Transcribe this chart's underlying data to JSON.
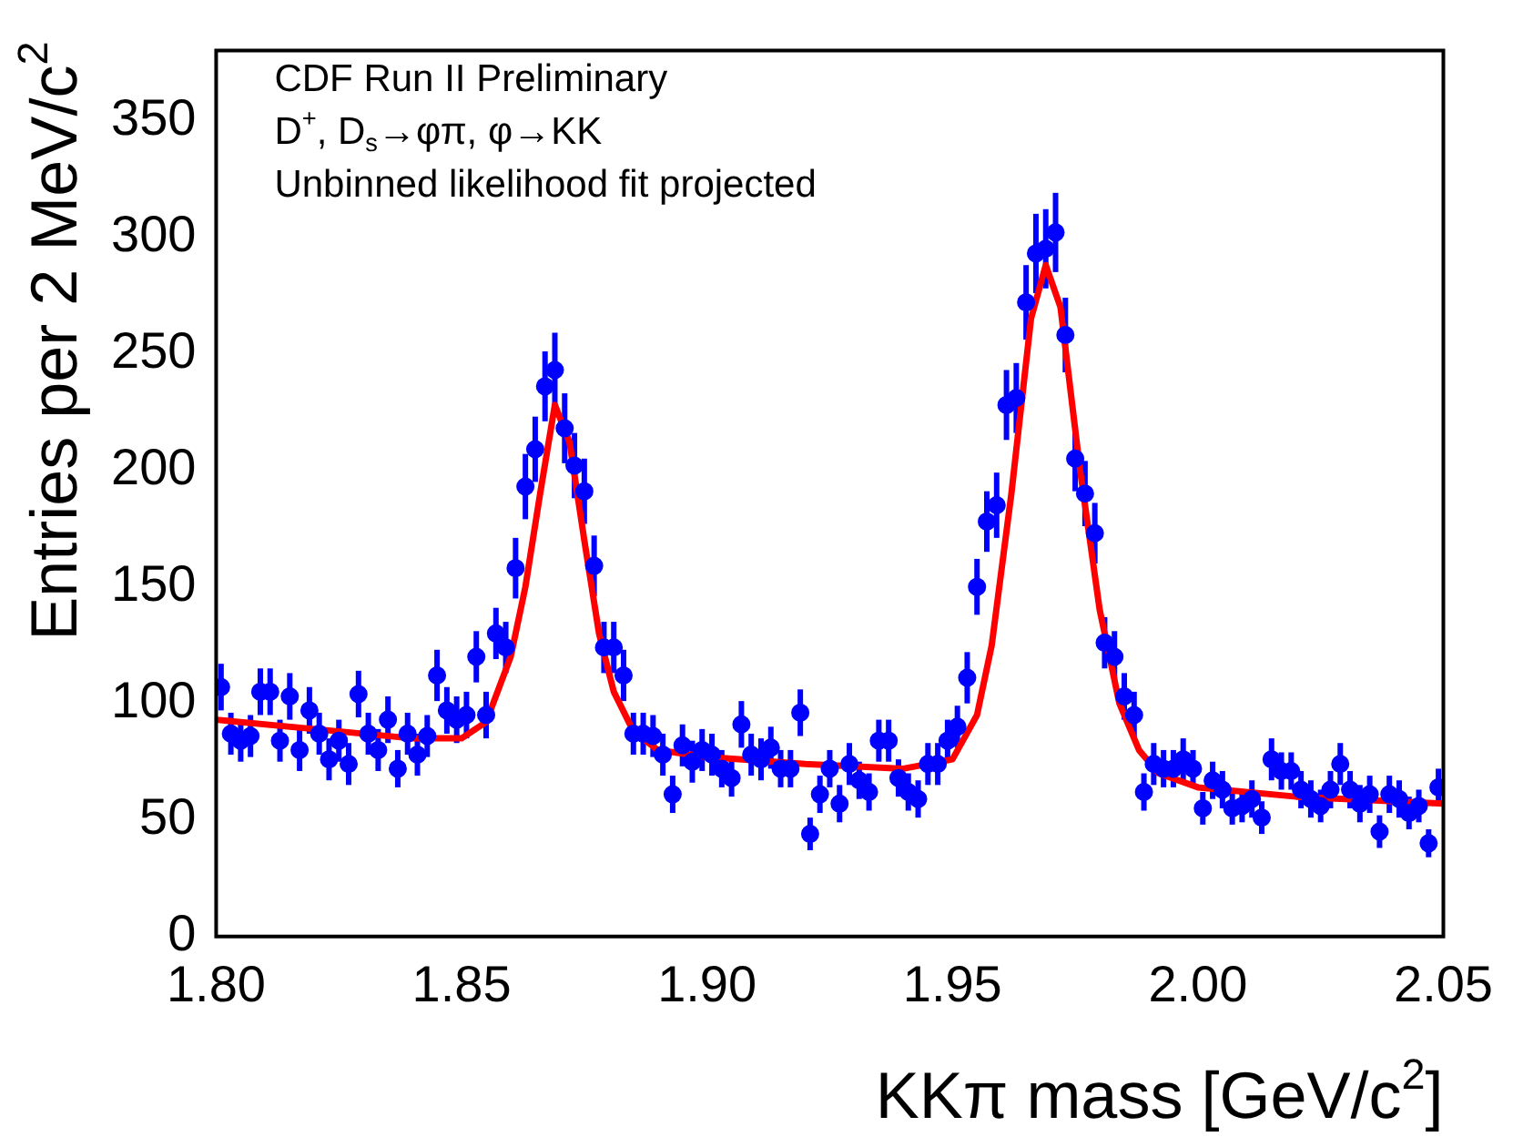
{
  "chart_data": {
    "type": "scatter",
    "xlabel": "KKπ mass [GeV/c$^{2}$]",
    "ylabel": "Entries per 2 MeV/c$^{2}$",
    "annotations": [
      "CDF Run II Preliminary",
      "D$^{+}$, D$_{s}$→φπ, φ→KK",
      "Unbinned likelihood fit projected"
    ],
    "xlim": [
      1.8,
      2.05
    ],
    "ylim": [
      0,
      380
    ],
    "xticks": [
      {
        "value": 1.8,
        "label": "1.80"
      },
      {
        "value": 1.85,
        "label": "1.85"
      },
      {
        "value": 1.9,
        "label": "1.90"
      },
      {
        "value": 1.95,
        "label": "1.95"
      },
      {
        "value": 2.0,
        "label": "2.00"
      },
      {
        "value": 2.05,
        "label": "2.05"
      }
    ],
    "yticks": [
      0,
      50,
      100,
      150,
      200,
      250,
      300,
      350
    ],
    "grid": false,
    "legend": false,
    "series": [
      {
        "type": "scatter",
        "color": "#0000ff",
        "marker": "circle",
        "x": [
          1.801,
          1.803,
          1.805,
          1.807,
          1.809,
          1.811,
          1.813,
          1.815,
          1.817,
          1.819,
          1.821,
          1.823,
          1.825,
          1.827,
          1.829,
          1.831,
          1.833,
          1.835,
          1.837,
          1.839,
          1.841,
          1.843,
          1.845,
          1.847,
          1.849,
          1.851,
          1.853,
          1.855,
          1.857,
          1.859,
          1.861,
          1.863,
          1.865,
          1.867,
          1.869,
          1.871,
          1.873,
          1.875,
          1.877,
          1.879,
          1.881,
          1.883,
          1.885,
          1.887,
          1.889,
          1.891,
          1.893,
          1.895,
          1.897,
          1.899,
          1.901,
          1.903,
          1.905,
          1.907,
          1.909,
          1.911,
          1.913,
          1.915,
          1.917,
          1.919,
          1.921,
          1.923,
          1.925,
          1.927,
          1.929,
          1.931,
          1.933,
          1.935,
          1.937,
          1.939,
          1.941,
          1.943,
          1.945,
          1.947,
          1.949,
          1.951,
          1.953,
          1.955,
          1.957,
          1.959,
          1.961,
          1.963,
          1.965,
          1.967,
          1.969,
          1.971,
          1.973,
          1.975,
          1.977,
          1.979,
          1.981,
          1.983,
          1.985,
          1.987,
          1.989,
          1.991,
          1.993,
          1.995,
          1.997,
          1.999,
          2.001,
          2.003,
          2.005,
          2.007,
          2.009,
          2.011,
          2.013,
          2.015,
          2.017,
          2.019,
          2.021,
          2.023,
          2.025,
          2.027,
          2.029,
          2.031,
          2.033,
          2.035,
          2.037,
          2.039,
          2.041,
          2.043,
          2.045,
          2.047,
          2.049
        ],
        "values": [
          107,
          87,
          84,
          86,
          105,
          105,
          84,
          103,
          80,
          97,
          87,
          76,
          84,
          74,
          104,
          87,
          80,
          93,
          72,
          87,
          78,
          86,
          112,
          97,
          93,
          95,
          120,
          95,
          130,
          124,
          158,
          193,
          209,
          236,
          243,
          218,
          202,
          191,
          159,
          124,
          124,
          112,
          87,
          87,
          86,
          78,
          61,
          82,
          75,
          80,
          78,
          72,
          68,
          91,
          78,
          76,
          81,
          72,
          72,
          96,
          44,
          61,
          72,
          57,
          74,
          67,
          62,
          84,
          84,
          68,
          62,
          59,
          74,
          74,
          84,
          90,
          111,
          150,
          178,
          185,
          228,
          231,
          272,
          293,
          295,
          302,
          258,
          205,
          190,
          173,
          126,
          120,
          103,
          95,
          62,
          74,
          72,
          72,
          76,
          72,
          55,
          67,
          63,
          55,
          56,
          59,
          51,
          76,
          71,
          71,
          63,
          59,
          56,
          63,
          74,
          63,
          57,
          61,
          45,
          61,
          59,
          53,
          56,
          40,
          64
        ],
        "errors": [
          10,
          9,
          9,
          9,
          10,
          10,
          9,
          10,
          9,
          10,
          9,
          9,
          9,
          9,
          10,
          9,
          9,
          10,
          8,
          9,
          9,
          9,
          11,
          10,
          10,
          10,
          11,
          10,
          11,
          11,
          13,
          14,
          14,
          15,
          16,
          15,
          14,
          14,
          13,
          11,
          11,
          11,
          9,
          9,
          9,
          9,
          8,
          9,
          9,
          9,
          9,
          8,
          8,
          10,
          9,
          9,
          9,
          8,
          8,
          10,
          7,
          8,
          8,
          8,
          9,
          8,
          8,
          9,
          9,
          8,
          8,
          8,
          9,
          9,
          9,
          9,
          11,
          12,
          13,
          14,
          15,
          15,
          16,
          17,
          17,
          17,
          16,
          14,
          14,
          13,
          11,
          11,
          10,
          10,
          8,
          9,
          8,
          8,
          9,
          8,
          7,
          8,
          8,
          7,
          7,
          8,
          7,
          9,
          8,
          8,
          8,
          8,
          7,
          8,
          9,
          8,
          8,
          8,
          7,
          8,
          8,
          7,
          7,
          6,
          8
        ]
      },
      {
        "type": "line",
        "color": "#ff0000",
        "marker": "none",
        "x": [
          1.8,
          1.82,
          1.84,
          1.85,
          1.855,
          1.86,
          1.863,
          1.866,
          1.869,
          1.872,
          1.875,
          1.878,
          1.881,
          1.885,
          1.89,
          1.9,
          1.92,
          1.94,
          1.95,
          1.955,
          1.958,
          1.962,
          1.966,
          1.969,
          1.972,
          1.976,
          1.98,
          1.984,
          1.988,
          1.992,
          2.0,
          2.02,
          2.05
        ],
        "values": [
          93,
          89,
          85,
          85,
          92,
          120,
          150,
          190,
          228,
          212,
          170,
          130,
          105,
          88,
          80,
          77,
          74,
          72,
          76,
          95,
          125,
          190,
          265,
          288,
          270,
          200,
          140,
          100,
          80,
          70,
          64,
          60,
          57
        ]
      }
    ]
  }
}
